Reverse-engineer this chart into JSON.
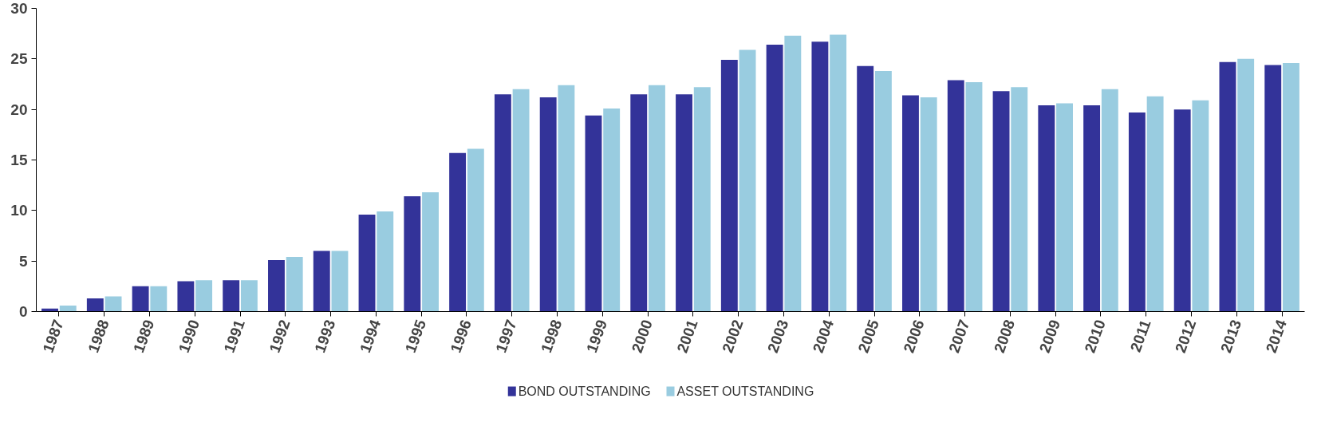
{
  "chart_data": {
    "type": "bar",
    "categories": [
      "1987",
      "1988",
      "1989",
      "1990",
      "1991",
      "1992",
      "1993",
      "1994",
      "1995",
      "1996",
      "1997",
      "1998",
      "1999",
      "2000",
      "2001",
      "2002",
      "2003",
      "2004",
      "2005",
      "2006",
      "2007",
      "2008",
      "2009",
      "2010",
      "2011",
      "2012",
      "2013",
      "2014"
    ],
    "series": [
      {
        "name": "BOND OUTSTANDING",
        "color": "#333399",
        "values": [
          0.3,
          1.3,
          2.5,
          3.0,
          3.1,
          5.1,
          6.0,
          9.6,
          11.4,
          15.7,
          21.5,
          21.2,
          19.4,
          21.5,
          21.5,
          24.9,
          26.4,
          26.7,
          24.3,
          21.4,
          22.9,
          21.8,
          20.4,
          20.4,
          19.7,
          20.0,
          24.7,
          24.4
        ]
      },
      {
        "name": "ASSET OUTSTANDING",
        "color": "#99cce0",
        "values": [
          0.6,
          1.5,
          2.5,
          3.1,
          3.1,
          5.4,
          6.0,
          9.9,
          11.8,
          16.1,
          22.0,
          22.4,
          20.1,
          22.4,
          22.2,
          25.9,
          27.3,
          27.4,
          23.8,
          21.2,
          22.7,
          22.2,
          20.6,
          22.0,
          21.3,
          20.9,
          25.0,
          24.6
        ]
      }
    ],
    "ylim": [
      0,
      30
    ],
    "yticks": [
      0,
      5,
      10,
      15,
      20,
      25,
      30
    ],
    "grid": false,
    "legend": "bottom"
  }
}
